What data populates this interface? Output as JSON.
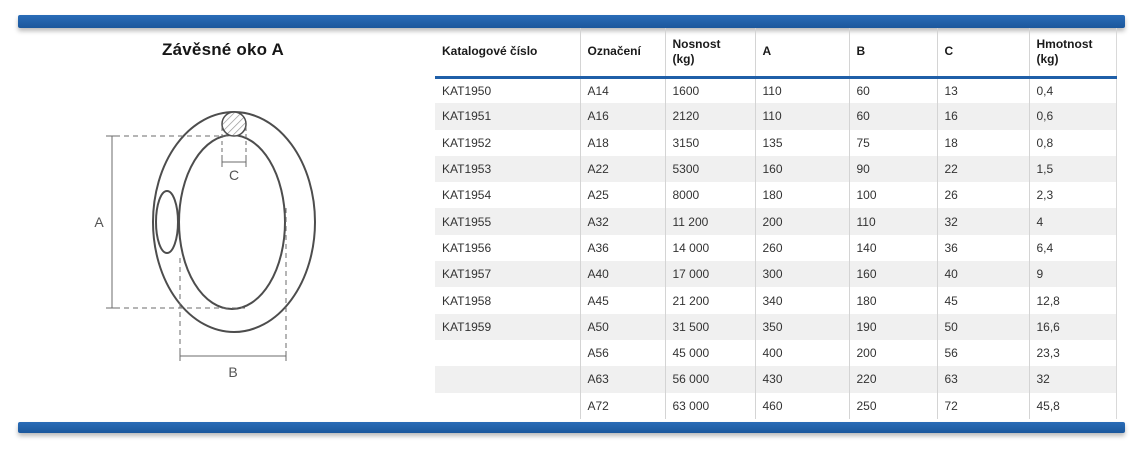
{
  "page": {
    "title": "Závěsné oko A"
  },
  "colors": {
    "accent_blue": "#1f5fa8",
    "row_shade": "#f0f0f0",
    "drawing_line": "#4d4d4d"
  },
  "diagram": {
    "dim_a_label": "A",
    "dim_b_label": "B",
    "dim_c_label": "C"
  },
  "table": {
    "columns": [
      {
        "label": "Katalogové číslo",
        "sub": ""
      },
      {
        "label": "Označení",
        "sub": ""
      },
      {
        "label": "Nosnost",
        "sub": "(kg)"
      },
      {
        "label": "A",
        "sub": ""
      },
      {
        "label": "B",
        "sub": ""
      },
      {
        "label": "C",
        "sub": ""
      },
      {
        "label": "Hmotnost",
        "sub": "(kg)"
      }
    ],
    "rows": [
      [
        "KAT1950",
        "A14",
        "1600",
        "110",
        "60",
        "13",
        "0,4"
      ],
      [
        "KAT1951",
        "A16",
        "2120",
        "110",
        "60",
        "16",
        "0,6"
      ],
      [
        "KAT1952",
        "A18",
        "3150",
        "135",
        "75",
        "18",
        "0,8"
      ],
      [
        "KAT1953",
        "A22",
        "5300",
        "160",
        "90",
        "22",
        "1,5"
      ],
      [
        "KAT1954",
        "A25",
        "8000",
        "180",
        "100",
        "26",
        "2,3"
      ],
      [
        "KAT1955",
        "A32",
        "11 200",
        "200",
        "110",
        "32",
        "4"
      ],
      [
        "KAT1956",
        "A36",
        "14 000",
        "260",
        "140",
        "36",
        "6,4"
      ],
      [
        "KAT1957",
        "A40",
        "17 000",
        "300",
        "160",
        "40",
        "9"
      ],
      [
        "KAT1958",
        "A45",
        "21 200",
        "340",
        "180",
        "45",
        "12,8"
      ],
      [
        "KAT1959",
        "A50",
        "31 500",
        "350",
        "190",
        "50",
        "16,6"
      ],
      [
        "",
        "A56",
        "45 000",
        "400",
        "200",
        "56",
        "23,3"
      ],
      [
        "",
        "A63",
        "56 000",
        "430",
        "220",
        "63",
        "32"
      ],
      [
        "",
        "A72",
        "63 000",
        "460",
        "250",
        "72",
        "45,8"
      ]
    ]
  }
}
